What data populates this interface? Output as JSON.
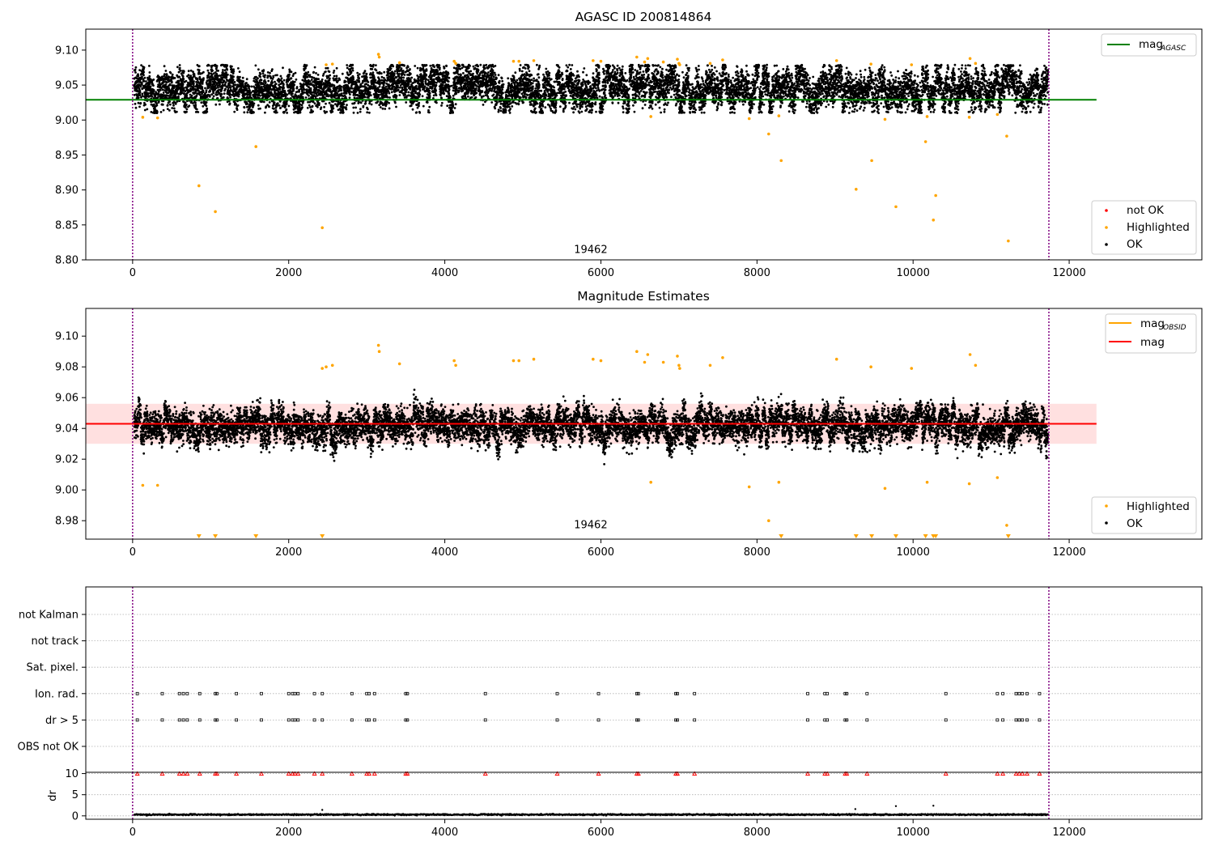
{
  "figure": {
    "star_title": "AGASC ID 200814864",
    "estimates_title": "Magnitude Estimates",
    "obs_label": "19462"
  },
  "colors": {
    "ok": "#000000",
    "highlighted": "#ffa500",
    "not_ok": "#ff0000",
    "mag_agasc": "#008000",
    "mag_obsid": "#ffa500",
    "mag": "#ff0000",
    "band": "#ffcccc",
    "obs_boundary": "#800080",
    "grid": "#b0b0b0"
  },
  "chart_data": [
    {
      "type": "scatter",
      "title": "AGASC ID 200814864",
      "xlim": [
        -600,
        13700
      ],
      "ylim": [
        8.8,
        9.13
      ],
      "xticks": [
        0,
        2000,
        4000,
        6000,
        8000,
        10000,
        12000
      ],
      "yticks": [
        8.8,
        8.85,
        8.9,
        8.95,
        9.0,
        9.05,
        9.1
      ],
      "legend": {
        "upper_right": [
          {
            "label": "mag",
            "sub": "AGASC",
            "kind": "line",
            "color": "#008000"
          }
        ],
        "lower_right": [
          {
            "label": "not OK",
            "kind": "dot",
            "color": "#ff0000"
          },
          {
            "label": "Highlighted",
            "kind": "dot",
            "color": "#ffa500"
          },
          {
            "label": "OK",
            "kind": "dot",
            "color": "#000000"
          }
        ]
      },
      "reference_lines": [
        {
          "name": "mag_AGASC",
          "y": 9.029,
          "x_range": [
            -600,
            12350
          ],
          "color": "#008000"
        }
      ],
      "observation_boundaries": [
        0,
        11740
      ],
      "observation_label": {
        "text": "19462",
        "x": 5870,
        "y": 8.81
      },
      "series": [
        {
          "name": "OK",
          "kind": "ok_band",
          "x_range": [
            20,
            11730
          ],
          "y_center": 9.044,
          "y_spread": 0.032,
          "y_min": 9.01,
          "y_max": 9.079,
          "approx_points": 11000
        },
        {
          "name": "Highlighted",
          "kind": "points",
          "x": [
            130,
            320,
            850,
            1060,
            1580,
            2430,
            2480,
            2560,
            3150,
            3160,
            3420,
            4120,
            4140,
            4880,
            4950,
            5140,
            5900,
            6000,
            6460,
            6560,
            6600,
            6640,
            6800,
            6980,
            7000,
            7010,
            7400,
            7560,
            7900,
            8150,
            8280,
            8310,
            9020,
            9270,
            9460,
            9470,
            9640,
            9780,
            9980,
            10160,
            10180,
            10260,
            10290,
            10720,
            10730,
            10800,
            11080,
            11200,
            11220
          ],
          "y": [
            9.004,
            9.003,
            8.906,
            8.869,
            8.962,
            8.846,
            9.079,
            9.08,
            9.094,
            9.09,
            9.082,
            9.084,
            9.081,
            9.084,
            9.084,
            9.085,
            9.085,
            9.084,
            9.09,
            9.083,
            9.088,
            9.005,
            9.083,
            9.087,
            9.081,
            9.079,
            9.081,
            9.086,
            9.002,
            8.98,
            9.006,
            8.942,
            9.085,
            8.901,
            9.08,
            8.942,
            9.001,
            8.876,
            9.079,
            8.969,
            9.005,
            8.857,
            8.892,
            9.004,
            9.088,
            9.081,
            9.008,
            8.977,
            8.827
          ]
        }
      ]
    },
    {
      "type": "scatter",
      "title": "Magnitude Estimates",
      "xlim": [
        -600,
        13700
      ],
      "ylim": [
        8.968,
        9.118
      ],
      "xticks": [
        0,
        2000,
        4000,
        6000,
        8000,
        10000,
        12000
      ],
      "yticks": [
        8.98,
        9.0,
        9.02,
        9.04,
        9.06,
        9.08,
        9.1
      ],
      "legend": {
        "upper_right": [
          {
            "label": "mag",
            "sub": "OBSID",
            "kind": "line",
            "color": "#ffa500"
          },
          {
            "label": "mag",
            "kind": "line",
            "color": "#ff0000"
          }
        ],
        "lower_right": [
          {
            "label": "Highlighted",
            "kind": "dot",
            "color": "#ffa500"
          },
          {
            "label": "OK",
            "kind": "dot",
            "color": "#000000"
          }
        ]
      },
      "reference_lines": [
        {
          "name": "mag",
          "y": 9.043,
          "x_range": [
            -600,
            12350
          ],
          "color": "#ff0000"
        },
        {
          "name": "mag_OBSID",
          "y": 9.043,
          "x_range": [
            0,
            11740
          ],
          "color": "#ffa500"
        }
      ],
      "band": {
        "y_low": 9.03,
        "y_high": 9.056,
        "x_range": [
          -600,
          12350
        ]
      },
      "observation_boundaries": [
        0,
        11740
      ],
      "observation_label": {
        "text": "19462",
        "x": 5870,
        "y": 8.975
      },
      "series": [
        {
          "name": "OK",
          "kind": "ok_band",
          "x_range": [
            20,
            11730
          ],
          "y_center": 9.042,
          "y_spread": 0.013,
          "y_min": 9.008,
          "y_max": 9.078,
          "approx_points": 11000
        },
        {
          "name": "Highlighted",
          "kind": "points",
          "x": [
            130,
            320,
            2430,
            2480,
            2560,
            3150,
            3160,
            3420,
            4120,
            4140,
            4880,
            4950,
            5140,
            5900,
            6000,
            6460,
            6560,
            6600,
            6640,
            6800,
            6980,
            7000,
            7010,
            7400,
            7560,
            7900,
            8150,
            8280,
            9020,
            9460,
            9640,
            9980,
            10180,
            10720,
            10730,
            10800,
            11080,
            11200
          ],
          "y": [
            9.003,
            9.003,
            9.079,
            9.08,
            9.081,
            9.094,
            9.09,
            9.082,
            9.084,
            9.081,
            9.084,
            9.084,
            9.085,
            9.085,
            9.084,
            9.09,
            9.083,
            9.088,
            9.005,
            9.083,
            9.087,
            9.081,
            9.079,
            9.081,
            9.086,
            9.002,
            8.98,
            9.005,
            9.085,
            9.08,
            9.001,
            9.079,
            9.005,
            9.004,
            9.088,
            9.081,
            9.008,
            8.977
          ]
        },
        {
          "name": "Highlighted (below axis)",
          "kind": "down_markers",
          "x": [
            850,
            1060,
            1580,
            2430,
            8310,
            9270,
            9470,
            9780,
            10160,
            10260,
            10290,
            11220
          ]
        }
      ]
    },
    {
      "type": "event",
      "xlim": [
        -600,
        13700
      ],
      "categories": [
        "not Kalman",
        "not track",
        "Sat. pixel.",
        "Ion. rad.",
        "dr > 5",
        "OBS not OK"
      ],
      "xticks": [
        0,
        2000,
        4000,
        6000,
        8000,
        10000,
        12000
      ],
      "observation_boundaries": [
        0,
        11740
      ],
      "flag_times": [
        60,
        380,
        600,
        650,
        700,
        860,
        1060,
        1080,
        1330,
        1650,
        2000,
        2050,
        2080,
        2120,
        2330,
        2430,
        2810,
        3000,
        3030,
        3100,
        3500,
        3520,
        4520,
        5440,
        5970,
        6460,
        6480,
        6960,
        6980,
        7200,
        8650,
        8870,
        8900,
        9130,
        9150,
        9410,
        10420,
        11080,
        11150,
        11320,
        11360,
        11400,
        11460,
        11620
      ],
      "dr_panel": {
        "ylabel": "dr",
        "ylim": [
          -0.8,
          10.3
        ],
        "yticks": [
          0,
          5,
          10
        ],
        "clipped_value": 10,
        "clipped_times": [
          60,
          380,
          600,
          650,
          700,
          860,
          1060,
          1080,
          1330,
          1650,
          2000,
          2050,
          2080,
          2120,
          2330,
          2430,
          2810,
          3000,
          3030,
          3100,
          3500,
          3520,
          4520,
          5440,
          5970,
          6460,
          6480,
          6960,
          6980,
          7200,
          8650,
          8870,
          8900,
          9130,
          9150,
          9410,
          10420,
          11080,
          11150,
          11320,
          11360,
          11400,
          11460,
          11620
        ],
        "baseline": {
          "x_range": [
            20,
            11730
          ],
          "y_center": 0.3,
          "y_spread": 0.2
        },
        "outliers": {
          "x": [
            2430,
            9260,
            9780,
            10260
          ],
          "y": [
            1.4,
            1.6,
            2.3,
            2.4
          ]
        }
      }
    }
  ]
}
